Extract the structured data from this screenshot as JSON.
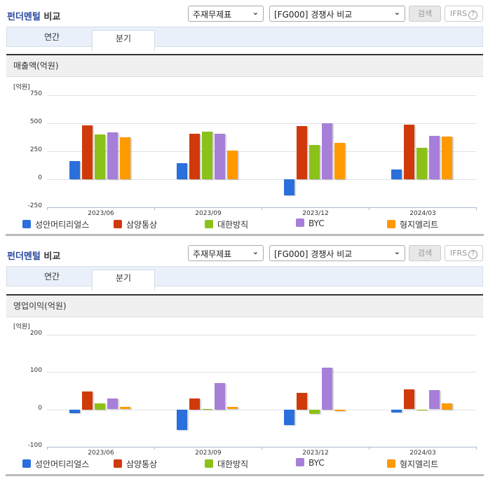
{
  "title_blue": "펀더멘털",
  "title_rest": " 비교",
  "controls": {
    "select1": "주재무제표",
    "select2": "[FG000] 경쟁사 비교",
    "search_label": "검색",
    "ifrs_label": "IFRS",
    "help_icon": "?"
  },
  "tabs": [
    {
      "label": "연간",
      "active": false
    },
    {
      "label": "분기",
      "active": true
    }
  ],
  "colors": {
    "성안머티리얼스": "#2a6fdb",
    "삼양통상": "#d03a0a",
    "대한방직": "#8cc11a",
    "BYC": "#a77fd9",
    "형지엘리트": "#ff9900"
  },
  "legend": [
    "성안머티리얼스",
    "삼양통상",
    "대한방직",
    "BYC",
    "형지엘리트"
  ],
  "panels": [
    {
      "header": "매출액(억원)",
      "unit": "[억원]",
      "yticks": [
        "750",
        "500",
        "250",
        "0",
        "-250"
      ]
    },
    {
      "header": "영업이익(억원)",
      "unit": "[억원]",
      "yticks": [
        "200",
        "100",
        "0",
        "-100"
      ]
    }
  ],
  "chart_data": [
    {
      "type": "bar",
      "title": "매출액(억원)",
      "xlabel": "",
      "ylabel": "[억원]",
      "ylim": [
        -250,
        750
      ],
      "yticks": [
        -250,
        0,
        250,
        500,
        750
      ],
      "grid": true,
      "legend_position": "bottom",
      "categories": [
        "2023/06",
        "2023/09",
        "2023/12",
        "2024/03"
      ],
      "series": [
        {
          "name": "성안머티리얼스",
          "color": "#2a6fdb",
          "values": [
            160,
            142,
            -146,
            88
          ]
        },
        {
          "name": "삼양통상",
          "color": "#d03a0a",
          "values": [
            479,
            404,
            473,
            485
          ]
        },
        {
          "name": "대한방직",
          "color": "#8cc11a",
          "values": [
            400,
            422,
            304,
            279
          ]
        },
        {
          "name": "BYC",
          "color": "#a77fd9",
          "values": [
            417,
            404,
            500,
            388
          ]
        },
        {
          "name": "형지엘리트",
          "color": "#ff9900",
          "values": [
            375,
            256,
            325,
            379
          ]
        }
      ]
    },
    {
      "type": "bar",
      "title": "영업이익(억원)",
      "xlabel": "",
      "ylabel": "[억원]",
      "ylim": [
        -100,
        200
      ],
      "yticks": [
        -100,
        0,
        100,
        200
      ],
      "grid": true,
      "legend_position": "bottom",
      "categories": [
        "2023/06",
        "2023/09",
        "2023/12",
        "2024/03"
      ],
      "series": [
        {
          "name": "성안머티리얼스",
          "color": "#2a6fdb",
          "values": [
            -9,
            -55,
            -42,
            -7
          ]
        },
        {
          "name": "삼양통상",
          "color": "#d03a0a",
          "values": [
            49,
            30,
            45,
            53
          ]
        },
        {
          "name": "대한방직",
          "color": "#8cc11a",
          "values": [
            16,
            2,
            -12,
            0
          ]
        },
        {
          "name": "BYC",
          "color": "#a77fd9",
          "values": [
            29,
            71,
            112,
            51
          ]
        },
        {
          "name": "형지엘리트",
          "color": "#ff9900",
          "values": [
            6,
            6,
            -4,
            16
          ]
        }
      ]
    }
  ]
}
